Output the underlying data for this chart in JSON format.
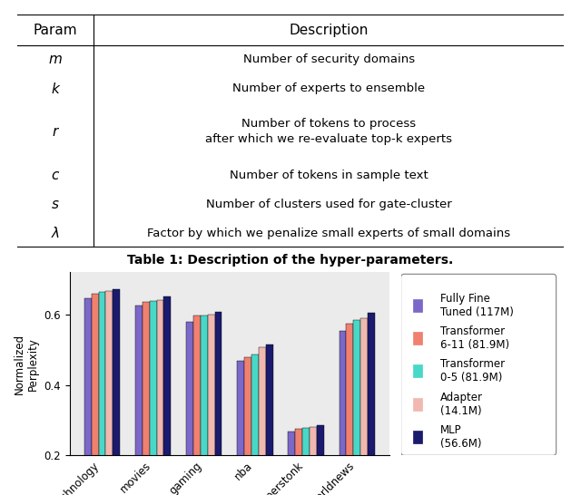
{
  "table": {
    "col_split": 0.14,
    "header": [
      "Param",
      "Description"
    ],
    "rows": [
      [
        "m",
        "Number of security domains"
      ],
      [
        "k",
        "Number of experts to ensemble"
      ],
      [
        "r",
        "Number of tokens to process\nafter which we re-evaluate top-k experts"
      ],
      [
        "c",
        "Number of tokens in sample text"
      ],
      [
        "s",
        "Number of clusters used for gate-cluster"
      ],
      [
        "λ",
        "Factor by which we penalize small experts of small domains"
      ]
    ],
    "caption": "Table 1: Description of the hyper-parameters.",
    "row_weights": [
      1,
      1,
      2,
      1,
      1,
      1
    ]
  },
  "chart": {
    "categories": [
      "technology",
      "movies",
      "gaming",
      "nba",
      "Superstonk",
      "worldnews"
    ],
    "series": [
      {
        "label": "Fully Fine\nTuned (117M)",
        "color": "#7b68c8",
        "values": [
          0.645,
          0.625,
          0.578,
          0.468,
          0.268,
          0.553
        ]
      },
      {
        "label": "Transformer\n6-11 (81.9M)",
        "color": "#f08070",
        "values": [
          0.658,
          0.635,
          0.597,
          0.478,
          0.276,
          0.573
        ]
      },
      {
        "label": "Transformer\n0-5 (81.9M)",
        "color": "#48d8c8",
        "values": [
          0.663,
          0.638,
          0.598,
          0.487,
          0.278,
          0.585
        ]
      },
      {
        "label": "Adapter\n(14.1M)",
        "color": "#f0b8b0",
        "values": [
          0.666,
          0.642,
          0.6,
          0.507,
          0.28,
          0.59
        ]
      },
      {
        "label": "MLP\n(56.6M)",
        "color": "#1a1a6e",
        "values": [
          0.672,
          0.65,
          0.608,
          0.515,
          0.286,
          0.606
        ]
      }
    ],
    "ylabel": "Normalized\nPerplexity",
    "ylim": [
      0.2,
      0.72
    ],
    "yticks": [
      0.2,
      0.4,
      0.6
    ],
    "bg_color": "#ebebeb"
  }
}
